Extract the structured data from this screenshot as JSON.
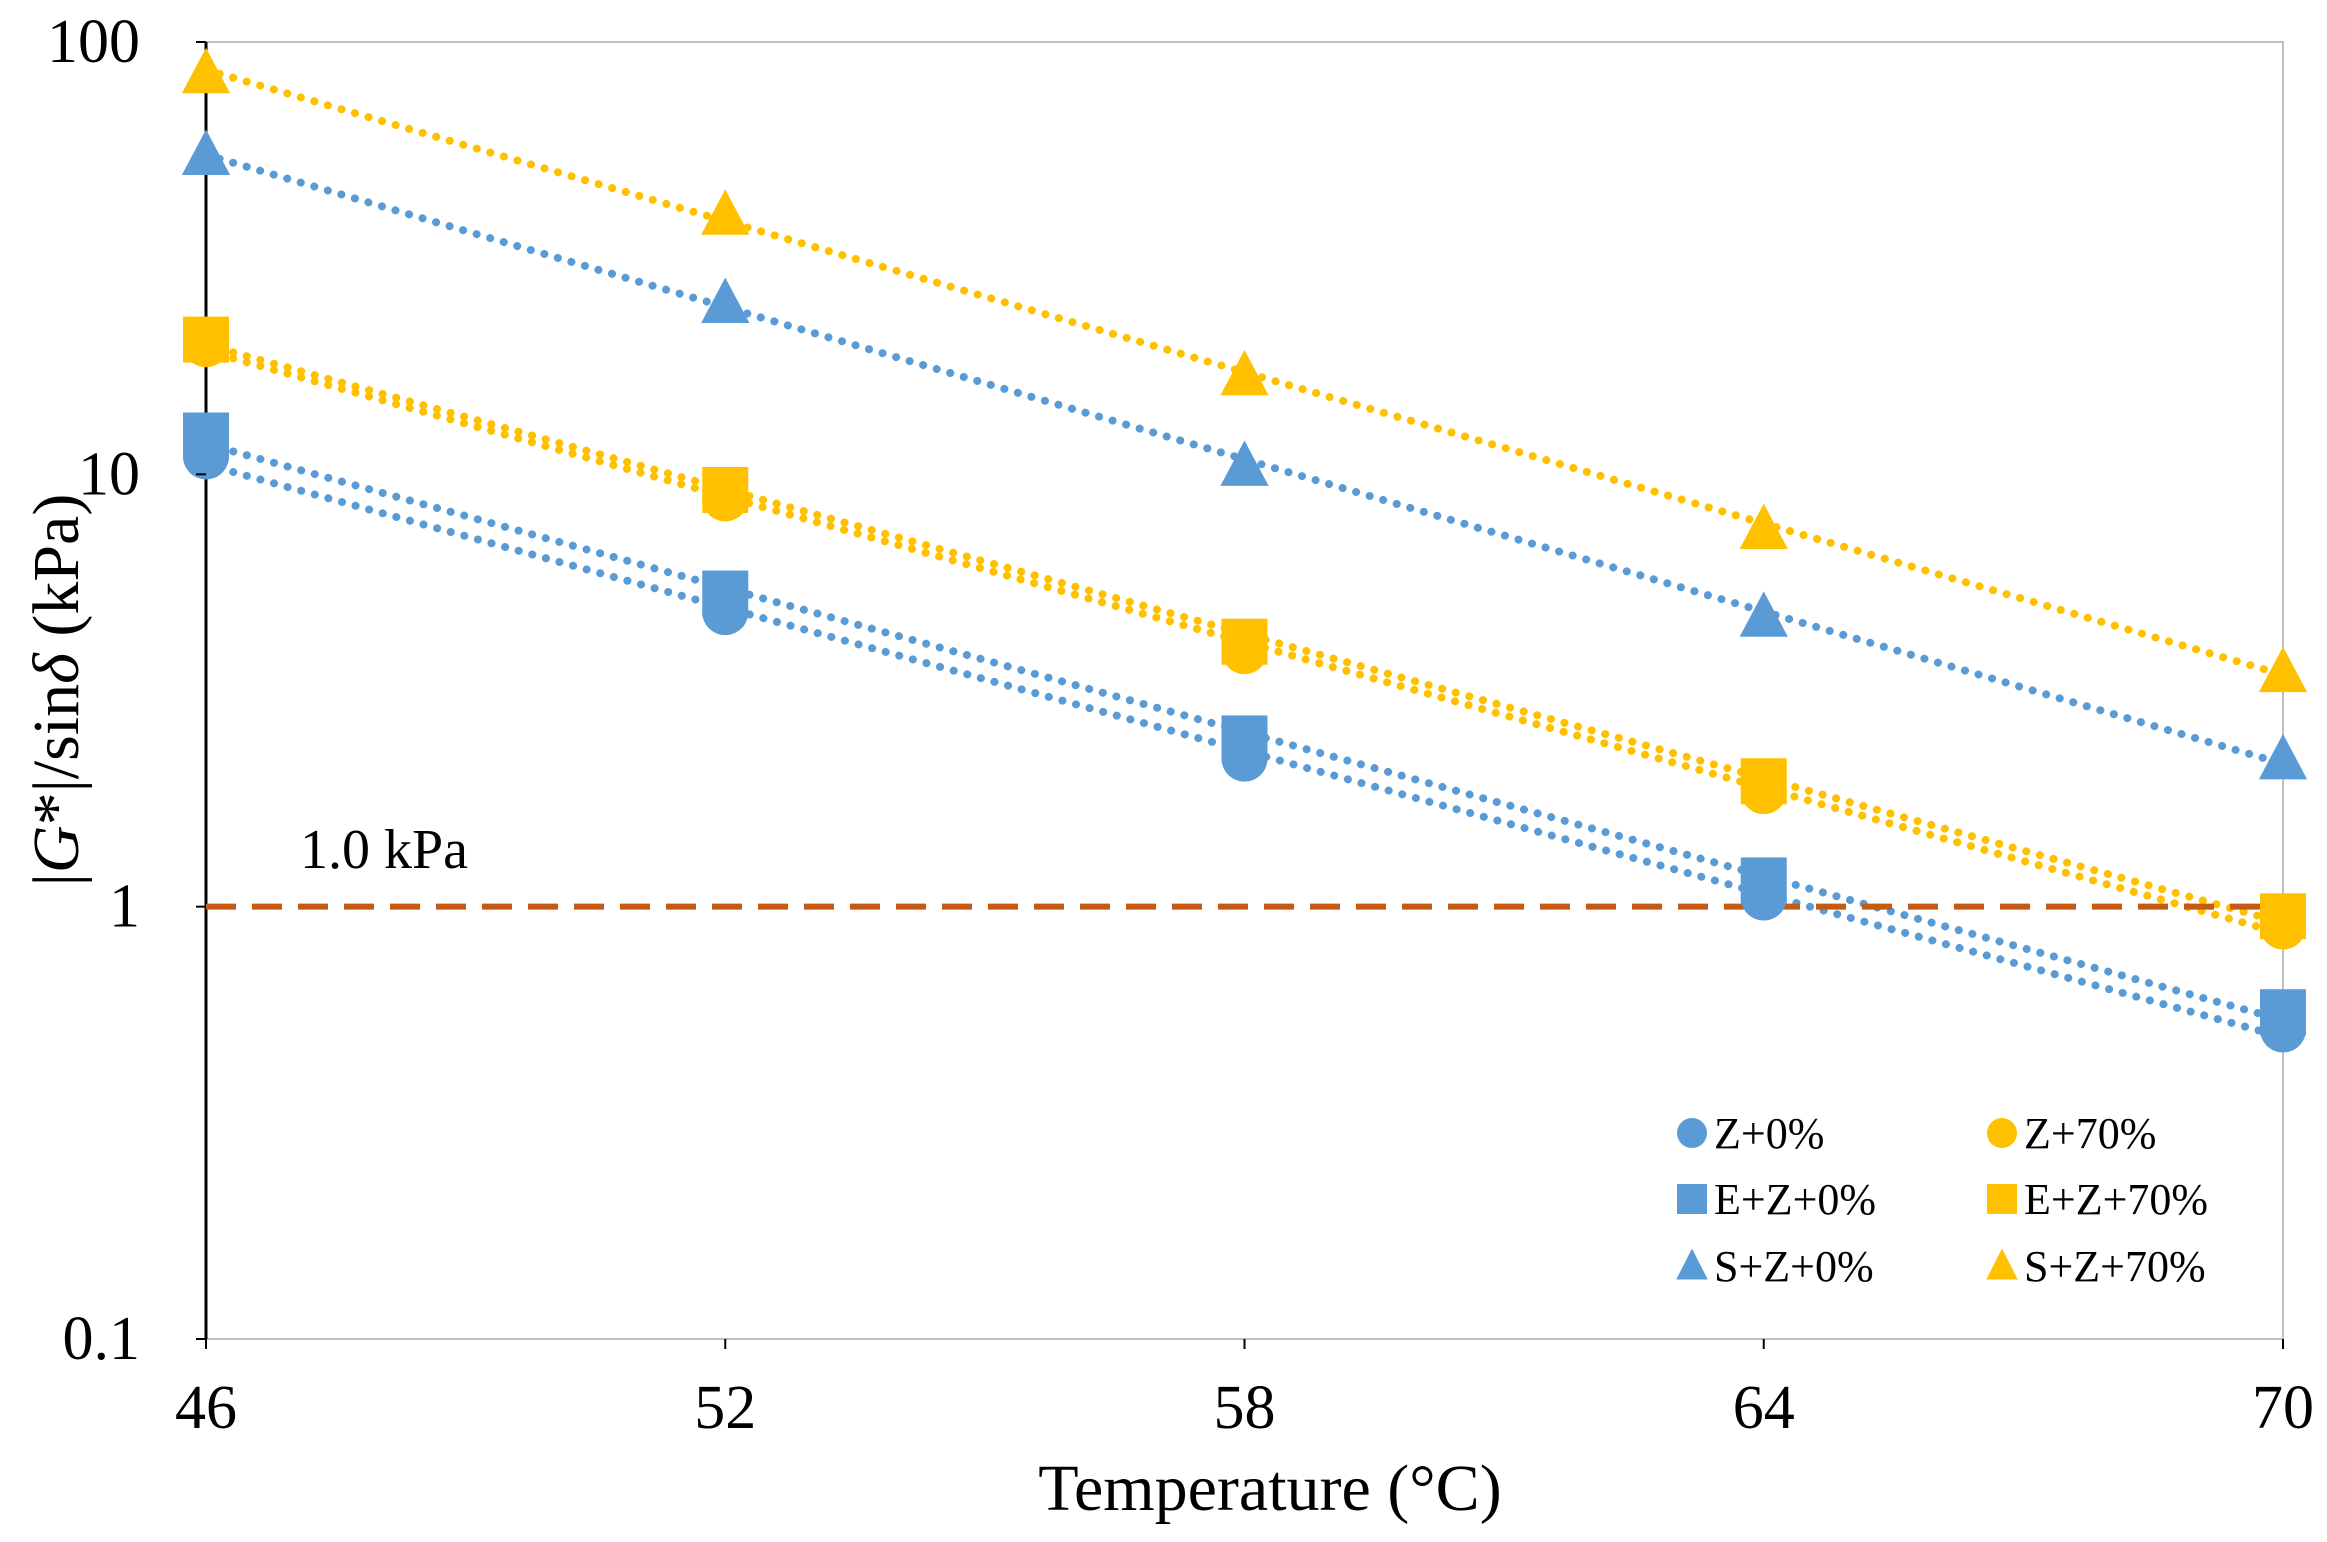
{
  "chart_data": {
    "type": "scatter",
    "title": "",
    "xlabel": "Temperature (°C)",
    "ylabel": {
      "prefix": "|",
      "italic1": "G",
      "mid": "*|/sin",
      "italic2": "δ",
      "suffix": " (kPa)"
    },
    "x_scale": "linear",
    "y_scale": "log",
    "xlim": [
      46,
      70
    ],
    "ylim": [
      0.1,
      100
    ],
    "x_ticks": [
      46,
      52,
      58,
      64,
      70
    ],
    "x_tick_labels": [
      "46",
      "52",
      "58",
      "64",
      "70"
    ],
    "y_ticks": [
      0.1,
      1,
      10,
      100
    ],
    "y_tick_labels": [
      "0.1",
      "1",
      "10",
      "100"
    ],
    "grid": false,
    "legend_position": "bottom-right",
    "reference_line": {
      "y": 1,
      "label": "1.0 kPa",
      "color": "#C55A11",
      "style": "dashed"
    },
    "series": [
      {
        "name": "Z+0%",
        "marker": "circle",
        "color": "#5B9BD5",
        "x": [
          46,
          52,
          58,
          64,
          70
        ],
        "y": [
          11,
          4.8,
          2.2,
          1.05,
          0.52
        ]
      },
      {
        "name": "Z+70%",
        "marker": "circle",
        "color": "#FFC000",
        "x": [
          46,
          52,
          58,
          64,
          70
        ],
        "y": [
          20,
          8.8,
          3.9,
          1.85,
          0.9
        ]
      },
      {
        "name": "E+Z+0%",
        "marker": "square",
        "color": "#5B9BD5",
        "x": [
          46,
          52,
          58,
          64,
          70
        ],
        "y": [
          12.3,
          5.3,
          2.45,
          1.15,
          0.57
        ]
      },
      {
        "name": "E+Z+70%",
        "marker": "square",
        "color": "#FFC000",
        "x": [
          46,
          52,
          58,
          64,
          70
        ],
        "y": [
          20.5,
          9.2,
          4.1,
          1.95,
          0.95
        ]
      },
      {
        "name": "S+Z+0%",
        "marker": "triangle",
        "color": "#5B9BD5",
        "x": [
          46,
          52,
          58,
          64,
          70
        ],
        "y": [
          55,
          25,
          10.5,
          4.7,
          2.2
        ]
      },
      {
        "name": "S+Z+70%",
        "marker": "triangle",
        "color": "#FFC000",
        "x": [
          46,
          52,
          58,
          64,
          70
        ],
        "y": [
          85,
          40,
          17,
          7.5,
          3.5
        ]
      }
    ],
    "legend_order": [
      "Z+0%",
      "Z+70%",
      "E+Z+0%",
      "E+Z+70%",
      "S+Z+0%",
      "S+Z+70%"
    ]
  }
}
